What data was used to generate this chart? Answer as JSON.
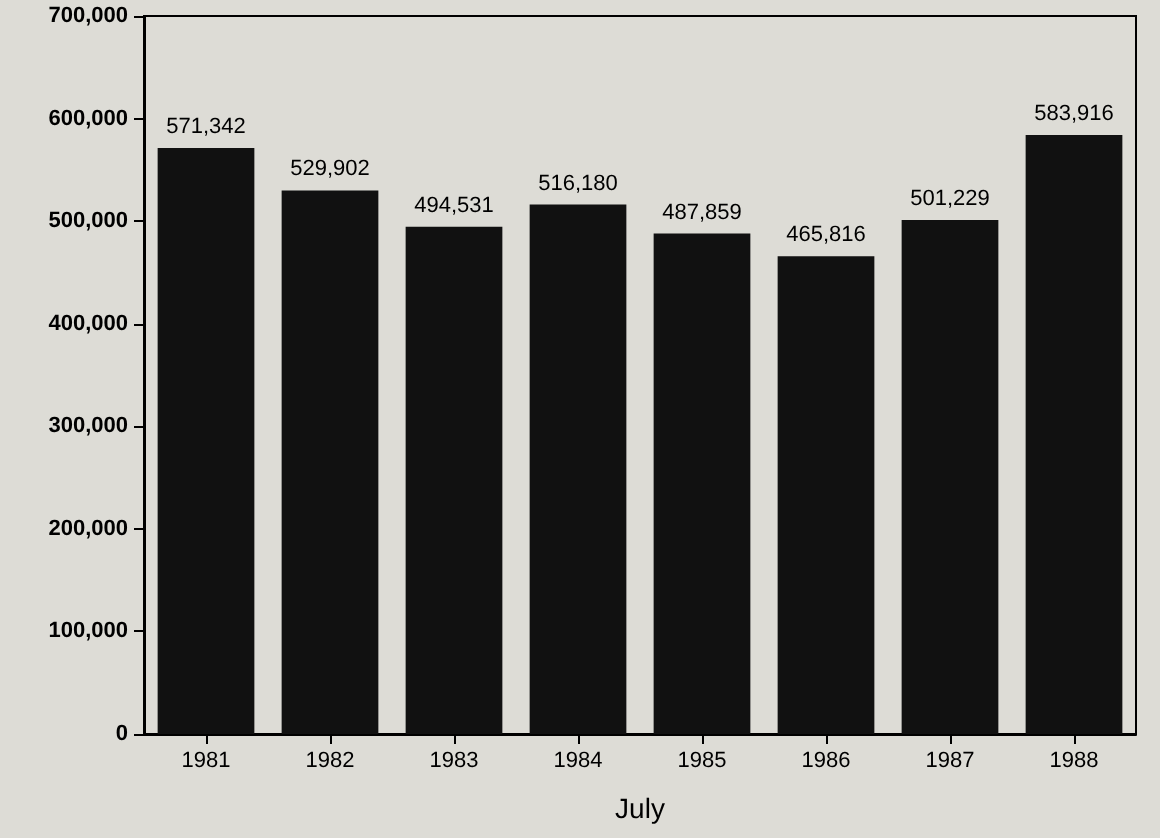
{
  "chart_data": {
    "type": "bar",
    "xlabel": "July",
    "categories": [
      "1981",
      "1982",
      "1983",
      "1984",
      "1985",
      "1986",
      "1987",
      "1988"
    ],
    "values": [
      571342,
      529902,
      494531,
      516180,
      487859,
      465816,
      501229,
      583916
    ],
    "value_labels": [
      "571,342",
      "529,902",
      "494,531",
      "516,180",
      "487,859",
      "465,816",
      "501,229",
      "583,916"
    ],
    "color": "#111111",
    "ylim": [
      0,
      700000
    ],
    "yticks": [
      {
        "value": 0,
        "label": "0"
      },
      {
        "value": 100000,
        "label": "100,000"
      },
      {
        "value": 200000,
        "label": "200,000"
      },
      {
        "value": 300000,
        "label": "300,000"
      },
      {
        "value": 400000,
        "label": "400,000"
      },
      {
        "value": 500000,
        "label": "500,000"
      },
      {
        "value": 600000,
        "label": "600,000"
      },
      {
        "value": 700000,
        "label": "700,000"
      }
    ],
    "grid": false
  }
}
